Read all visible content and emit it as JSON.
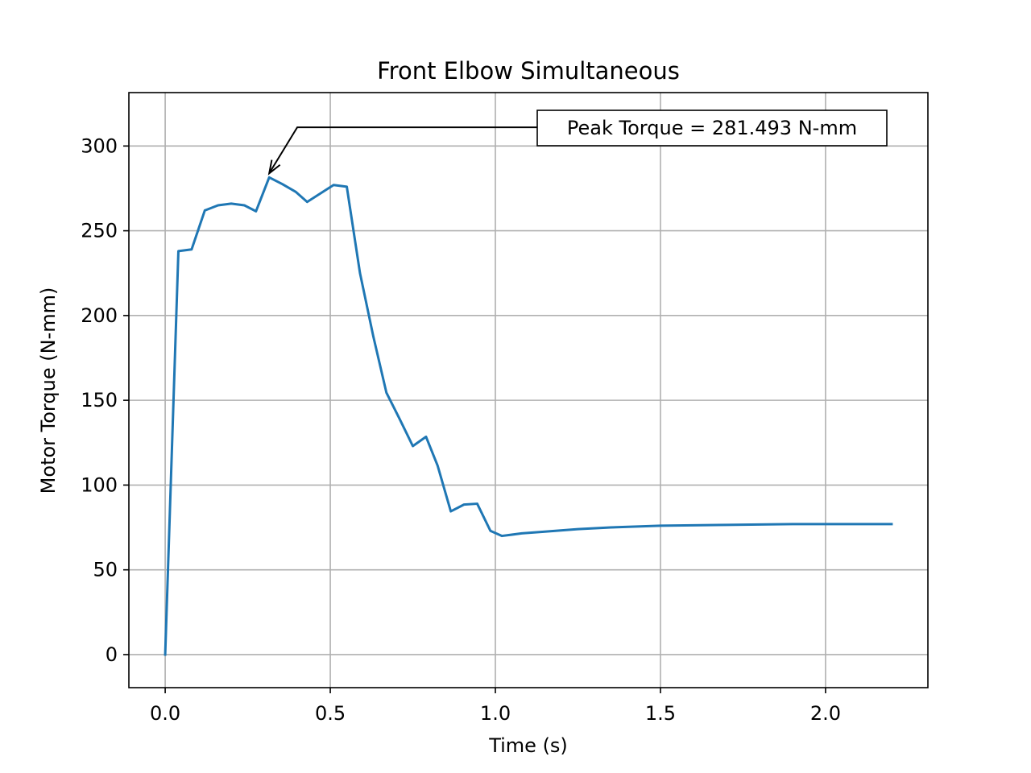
{
  "chart_data": {
    "type": "line",
    "title": "Front Elbow Simultaneous",
    "xlabel": "Time (s)",
    "ylabel": "Motor Torque (N-mm)",
    "xlim": [
      -0.11,
      2.31
    ],
    "ylim": [
      -19.5,
      331.5
    ],
    "xticks": [
      0.0,
      0.5,
      1.0,
      1.5,
      2.0
    ],
    "xtick_labels": [
      "0.0",
      "0.5",
      "1.0",
      "1.5",
      "2.0"
    ],
    "yticks": [
      0,
      50,
      100,
      150,
      200,
      250,
      300
    ],
    "ytick_labels": [
      "0",
      "50",
      "100",
      "150",
      "200",
      "250",
      "300"
    ],
    "grid": true,
    "series": [
      {
        "color": "#1f77b4",
        "x": [
          0.0,
          0.04,
          0.08,
          0.12,
          0.16,
          0.2,
          0.24,
          0.275,
          0.315,
          0.355,
          0.395,
          0.43,
          0.47,
          0.51,
          0.55,
          0.59,
          0.63,
          0.67,
          0.71,
          0.75,
          0.79,
          0.825,
          0.865,
          0.905,
          0.945,
          0.985,
          1.02,
          1.08,
          1.15,
          1.25,
          1.35,
          1.5,
          1.7,
          1.9,
          2.1,
          2.2
        ],
        "y": [
          0,
          238,
          239,
          262,
          265,
          266,
          265,
          261.5,
          281.493,
          277.5,
          273,
          267,
          272,
          277,
          276,
          225,
          188,
          154.5,
          139,
          123,
          128.5,
          111.5,
          84.5,
          88.5,
          89,
          73,
          70,
          71.5,
          72.5,
          74,
          75,
          76,
          76.5,
          77,
          77,
          77
        ]
      }
    ],
    "annotations": [
      {
        "text": "Peak Torque = 281.493 N-mm",
        "point": [
          0.315,
          281.493
        ],
        "text_anchor": [
          0.4,
          311
        ]
      }
    ]
  }
}
